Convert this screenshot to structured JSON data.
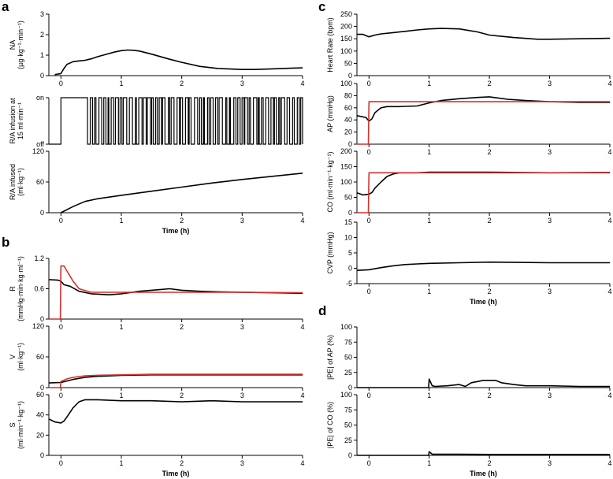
{
  "panel_labels": [
    "a",
    "b",
    "c",
    "d"
  ],
  "chart_data": [
    {
      "id": "a1",
      "panel": "a",
      "type": "line",
      "ylabel": [
        "NA",
        "(µg·kg⁻¹·min⁻¹)"
      ],
      "xlim": [
        -0.2,
        4
      ],
      "ylim": [
        0,
        3
      ],
      "yticks": [
        0,
        1,
        2,
        3
      ],
      "xticks": [
        0,
        1,
        2,
        3,
        4
      ],
      "series": [
        {
          "color": "#000000",
          "x": [
            -0.1,
            0,
            0.05,
            0.1,
            0.2,
            0.3,
            0.4,
            0.5,
            0.6,
            0.7,
            0.8,
            0.9,
            1.0,
            1.1,
            1.2,
            1.3,
            1.5,
            1.8,
            2.0,
            2.3,
            2.6,
            3.0,
            3.2,
            3.5,
            3.8,
            4.0
          ],
          "y": [
            0.05,
            0.1,
            0.35,
            0.55,
            0.68,
            0.72,
            0.75,
            0.82,
            0.92,
            1.0,
            1.08,
            1.16,
            1.22,
            1.25,
            1.24,
            1.2,
            1.05,
            0.8,
            0.65,
            0.45,
            0.35,
            0.3,
            0.3,
            0.33,
            0.36,
            0.38
          ]
        }
      ]
    },
    {
      "id": "a2",
      "panel": "a",
      "type": "line",
      "ylabel": [
        "R/A infusion at",
        "15 ml·min⁻¹"
      ],
      "xlim": [
        -0.2,
        4
      ],
      "ylim": [
        0,
        1
      ],
      "ytick_labels": [
        "off",
        "on"
      ],
      "step_series": {
        "on_from": 0,
        "switching_from": 0.42,
        "switching_to": 4.0
      },
      "series": [
        {
          "color": "#000000"
        }
      ]
    },
    {
      "id": "a3",
      "panel": "a",
      "type": "line",
      "ylabel": [
        "R/A infused",
        "(ml·kg⁻¹)"
      ],
      "xlabel": "Time (h)",
      "xlim": [
        -0.2,
        4
      ],
      "ylim": [
        0,
        120
      ],
      "yticks": [
        0,
        60,
        120
      ],
      "xticks": [
        0,
        1,
        2,
        3,
        4
      ],
      "series": [
        {
          "color": "#000000",
          "x": [
            0,
            0.2,
            0.4,
            0.6,
            1.0,
            1.5,
            2.0,
            2.5,
            3.0,
            3.5,
            4.0
          ],
          "y": [
            0,
            12,
            22,
            27,
            34,
            42,
            50,
            58,
            65,
            71,
            77
          ]
        }
      ]
    },
    {
      "id": "b1",
      "panel": "b",
      "type": "line",
      "ylabel": [
        "R",
        "(mmHg·min·kg·ml⁻¹)"
      ],
      "xlim": [
        -0.2,
        4
      ],
      "ylim": [
        0,
        1.2
      ],
      "yticks": [
        0,
        0.6,
        1.2
      ],
      "xticks": [
        0,
        1,
        2,
        3,
        4
      ],
      "series": [
        {
          "color": "#000000",
          "x": [
            -0.2,
            -0.05,
            0,
            0.05,
            0.15,
            0.3,
            0.5,
            0.8,
            1.0,
            1.3,
            1.6,
            1.8,
            2.0,
            2.3,
            2.6,
            3.0,
            3.5,
            4.0
          ],
          "y": [
            0.78,
            0.77,
            0.75,
            0.68,
            0.65,
            0.55,
            0.5,
            0.48,
            0.5,
            0.55,
            0.58,
            0.6,
            0.57,
            0.55,
            0.54,
            0.53,
            0.52,
            0.51
          ]
        },
        {
          "color": "#d0312d",
          "x": [
            -0.2,
            -0.01,
            0,
            0.05,
            0.1,
            0.2,
            0.3,
            0.5,
            1.0,
            2.0,
            3.0,
            4.0
          ],
          "y": [
            0,
            0,
            1.05,
            1.05,
            0.95,
            0.75,
            0.6,
            0.53,
            0.53,
            0.53,
            0.53,
            0.52
          ]
        }
      ]
    },
    {
      "id": "b2",
      "panel": "b",
      "type": "line",
      "ylabel": [
        "V",
        "(ml·kg⁻¹)"
      ],
      "xlim": [
        -0.2,
        4
      ],
      "ylim": [
        0,
        120
      ],
      "yticks": [
        0,
        60,
        120
      ],
      "xticks": [
        0,
        1,
        2,
        3,
        4
      ],
      "series": [
        {
          "color": "#000000",
          "x": [
            -0.2,
            0,
            0.1,
            0.2,
            0.4,
            0.6,
            1.0,
            1.5,
            2.0,
            3.0,
            4.0
          ],
          "y": [
            9,
            10,
            13,
            16,
            20,
            22,
            24,
            25,
            25,
            25,
            25
          ]
        },
        {
          "color": "#d0312d",
          "x": [
            -0.2,
            -0.01,
            0,
            0.1,
            0.2,
            0.4,
            0.6,
            1.0,
            1.5,
            2.0,
            3.0,
            4.0
          ],
          "y": [
            0,
            0,
            12,
            17,
            20,
            23,
            24,
            25,
            26,
            26,
            26,
            26
          ]
        }
      ]
    },
    {
      "id": "b3",
      "panel": "b",
      "type": "line",
      "ylabel": [
        "S",
        "(ml·min⁻¹·kg⁻¹)"
      ],
      "xlabel": "Time (h)",
      "xlim": [
        -0.2,
        4
      ],
      "ylim": [
        0,
        60
      ],
      "yticks": [
        0,
        20,
        40,
        60
      ],
      "xticks": [
        0,
        1,
        2,
        3,
        4
      ],
      "series": [
        {
          "color": "#000000",
          "x": [
            -0.2,
            -0.1,
            0,
            0.05,
            0.1,
            0.2,
            0.3,
            0.4,
            0.6,
            1.0,
            1.5,
            2.0,
            2.5,
            3.0,
            3.5,
            4.0
          ],
          "y": [
            36,
            33,
            32,
            34,
            38,
            47,
            53,
            55,
            55,
            54,
            54,
            53,
            54,
            53,
            53,
            53
          ]
        }
      ]
    },
    {
      "id": "c1",
      "panel": "c",
      "type": "line",
      "ylabel": [
        "Heart Rate (bpm)"
      ],
      "xlim": [
        -0.2,
        4
      ],
      "ylim": [
        0,
        250
      ],
      "yticks": [
        0,
        50,
        100,
        150,
        200,
        250
      ],
      "xticks": [
        0,
        1,
        2,
        3,
        4
      ],
      "series": [
        {
          "color": "#000000",
          "x": [
            -0.2,
            -0.1,
            0,
            0.1,
            0.2,
            0.4,
            0.6,
            0.8,
            1.0,
            1.2,
            1.5,
            1.8,
            2.0,
            2.4,
            2.8,
            3.0,
            3.5,
            4.0
          ],
          "y": [
            168,
            168,
            158,
            165,
            170,
            175,
            180,
            186,
            190,
            192,
            190,
            178,
            165,
            155,
            148,
            148,
            150,
            152
          ]
        }
      ]
    },
    {
      "id": "c2",
      "panel": "c",
      "type": "line",
      "ylabel": [
        "AP (mmHg)"
      ],
      "xlim": [
        -0.2,
        4
      ],
      "ylim": [
        0,
        100
      ],
      "yticks": [
        0,
        20,
        40,
        60,
        80,
        100
      ],
      "xticks": [
        0,
        1,
        2,
        3,
        4
      ],
      "series": [
        {
          "color": "#000000",
          "x": [
            -0.2,
            -0.05,
            0,
            0.05,
            0.1,
            0.2,
            0.3,
            0.5,
            0.8,
            1.0,
            1.2,
            1.5,
            1.8,
            2.0,
            2.3,
            2.6,
            3.0,
            3.5,
            4.0
          ],
          "y": [
            47,
            44,
            38,
            42,
            52,
            60,
            62,
            62,
            63,
            68,
            72,
            75,
            77,
            78,
            74,
            72,
            70,
            69,
            69
          ]
        },
        {
          "color": "#d0312d",
          "x": [
            -0.2,
            -0.01,
            0,
            4.0
          ],
          "y": [
            0,
            0,
            70,
            70
          ]
        }
      ]
    },
    {
      "id": "c3",
      "panel": "c",
      "type": "line",
      "ylabel": [
        "CO (ml·min⁻¹·kg⁻¹)"
      ],
      "xlim": [
        -0.2,
        4
      ],
      "ylim": [
        0,
        200
      ],
      "yticks": [
        0,
        50,
        100,
        150,
        200
      ],
      "xticks": [
        0,
        1,
        2,
        3,
        4
      ],
      "series": [
        {
          "color": "#000000",
          "x": [
            -0.2,
            -0.1,
            0,
            0.05,
            0.1,
            0.2,
            0.3,
            0.4,
            0.5,
            0.8,
            1.0,
            1.5,
            2.0,
            3.0,
            4.0
          ],
          "y": [
            65,
            58,
            60,
            66,
            80,
            100,
            118,
            126,
            130,
            130,
            132,
            132,
            132,
            130,
            131
          ]
        },
        {
          "color": "#d0312d",
          "x": [
            -0.2,
            -0.01,
            0,
            4.0
          ],
          "y": [
            0,
            0,
            130,
            130
          ]
        }
      ]
    },
    {
      "id": "c4",
      "panel": "c",
      "type": "line",
      "ylabel": [
        "CVP (mmHg)"
      ],
      "xlabel": "Time (h)",
      "xlim": [
        -0.2,
        4
      ],
      "ylim": [
        -5,
        15
      ],
      "yticks": [
        -5,
        0,
        5,
        10,
        15
      ],
      "xticks": [
        0,
        1,
        2,
        3,
        4
      ],
      "series": [
        {
          "color": "#000000",
          "x": [
            -0.2,
            0,
            0.2,
            0.4,
            0.6,
            0.8,
            1.0,
            1.5,
            2.0,
            2.5,
            3.0,
            3.5,
            4.0
          ],
          "y": [
            -0.7,
            -0.5,
            0.2,
            0.8,
            1.2,
            1.4,
            1.6,
            1.8,
            2.0,
            1.9,
            1.8,
            1.8,
            1.8
          ]
        }
      ]
    },
    {
      "id": "d1",
      "panel": "d",
      "type": "line",
      "ylabel": [
        "|PE| of AP (%)"
      ],
      "xlim": [
        -0.2,
        4
      ],
      "ylim": [
        0,
        100
      ],
      "yticks": [
        0,
        25,
        50,
        75,
        100
      ],
      "xticks": [
        0,
        1,
        2,
        3,
        4
      ],
      "series": [
        {
          "color": "#000000",
          "x": [
            -0.2,
            0.99,
            1.0,
            1.05,
            1.1,
            1.3,
            1.5,
            1.6,
            1.7,
            1.9,
            2.1,
            2.2,
            2.4,
            2.6,
            3.0,
            3.5,
            4.0
          ],
          "y": [
            0,
            0,
            14,
            3,
            2,
            3,
            5,
            2,
            8,
            12,
            12,
            8,
            5,
            3,
            3,
            2,
            2
          ]
        }
      ]
    },
    {
      "id": "d2",
      "panel": "d",
      "type": "line",
      "ylabel": [
        "|PE| of CO (%)"
      ],
      "xlabel": "Time (h)",
      "xlim": [
        -0.2,
        4
      ],
      "ylim": [
        0,
        100
      ],
      "yticks": [
        0,
        25,
        50,
        75,
        100
      ],
      "xticks": [
        0,
        1,
        2,
        3,
        4
      ],
      "series": [
        {
          "color": "#000000",
          "x": [
            -0.2,
            0.99,
            1.0,
            1.05,
            1.2,
            1.5,
            2.0,
            2.5,
            3.0,
            3.5,
            4.0
          ],
          "y": [
            0,
            0,
            6,
            2,
            2,
            2,
            1.5,
            1.5,
            1.5,
            1.5,
            1.5
          ]
        }
      ]
    }
  ]
}
